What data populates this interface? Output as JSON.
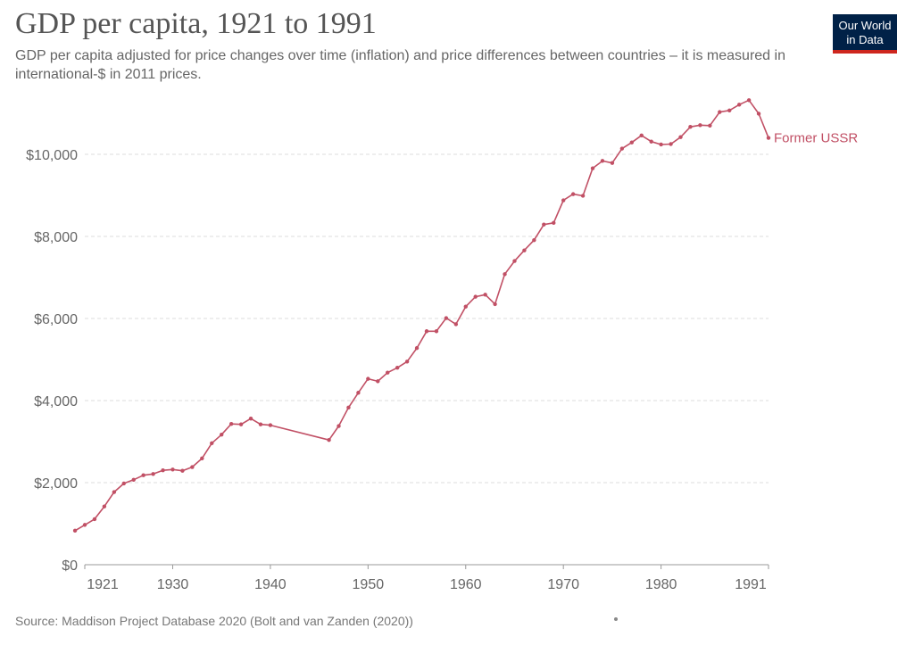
{
  "header": {
    "title": "GDP per capita, 1921 to 1991",
    "subtitle": "GDP per capita adjusted for price changes over time (inflation) and price differences between countries – it is measured in international-$ in 2011 prices."
  },
  "logo": {
    "line1": "Our World",
    "line2": "in Data"
  },
  "footer": {
    "source": "Source: Maddison Project Database 2020 (Bolt and van Zanden (2020))"
  },
  "chart_data": {
    "type": "line",
    "title": "GDP per capita, 1921 to 1991",
    "xlabel": "",
    "ylabel": "",
    "xlim": [
      1921,
      1991
    ],
    "ylim": [
      0,
      11000
    ],
    "y_ticks": [
      0,
      2000,
      4000,
      6000,
      8000,
      10000
    ],
    "y_tick_labels": [
      "$0",
      "$2,000",
      "$4,000",
      "$6,000",
      "$8,000",
      "$10,000"
    ],
    "x_ticks": [
      1921,
      1930,
      1940,
      1950,
      1960,
      1970,
      1980,
      1991
    ],
    "x_tick_labels": [
      "1921",
      "1930",
      "1940",
      "1950",
      "1960",
      "1970",
      "1980",
      "1991"
    ],
    "grid": true,
    "series": [
      {
        "name": "Former USSR",
        "color": "#c15065",
        "x": [
          1920,
          1921,
          1922,
          1923,
          1924,
          1925,
          1926,
          1927,
          1928,
          1929,
          1930,
          1931,
          1932,
          1933,
          1934,
          1935,
          1936,
          1937,
          1938,
          1939,
          1940,
          1946,
          1947,
          1948,
          1949,
          1950,
          1951,
          1952,
          1953,
          1954,
          1955,
          1956,
          1957,
          1958,
          1959,
          1960,
          1961,
          1962,
          1963,
          1964,
          1965,
          1966,
          1967,
          1968,
          1969,
          1970,
          1971,
          1972,
          1973,
          1974,
          1975,
          1976,
          1977,
          1978,
          1979,
          1980,
          1981,
          1982,
          1983,
          1984,
          1985,
          1986,
          1987,
          1988,
          1989,
          1990,
          1991
        ],
        "values": [
          830,
          970,
          1110,
          1420,
          1770,
          1980,
          2070,
          2180,
          2210,
          2300,
          2320,
          2290,
          2380,
          2590,
          2960,
          3170,
          3430,
          3420,
          3560,
          3420,
          3400,
          3040,
          3380,
          3830,
          4190,
          4530,
          4470,
          4680,
          4800,
          4950,
          5280,
          5690,
          5690,
          6010,
          5860,
          6290,
          6530,
          6580,
          6350,
          7080,
          7400,
          7660,
          7910,
          8290,
          8330,
          8880,
          9030,
          8990,
          9660,
          9840,
          9790,
          10140,
          10290,
          10460,
          10310,
          10240,
          10250,
          10420,
          10670,
          10710,
          10700,
          11030,
          11070,
          11210,
          11320,
          10990,
          10400
        ]
      }
    ]
  }
}
